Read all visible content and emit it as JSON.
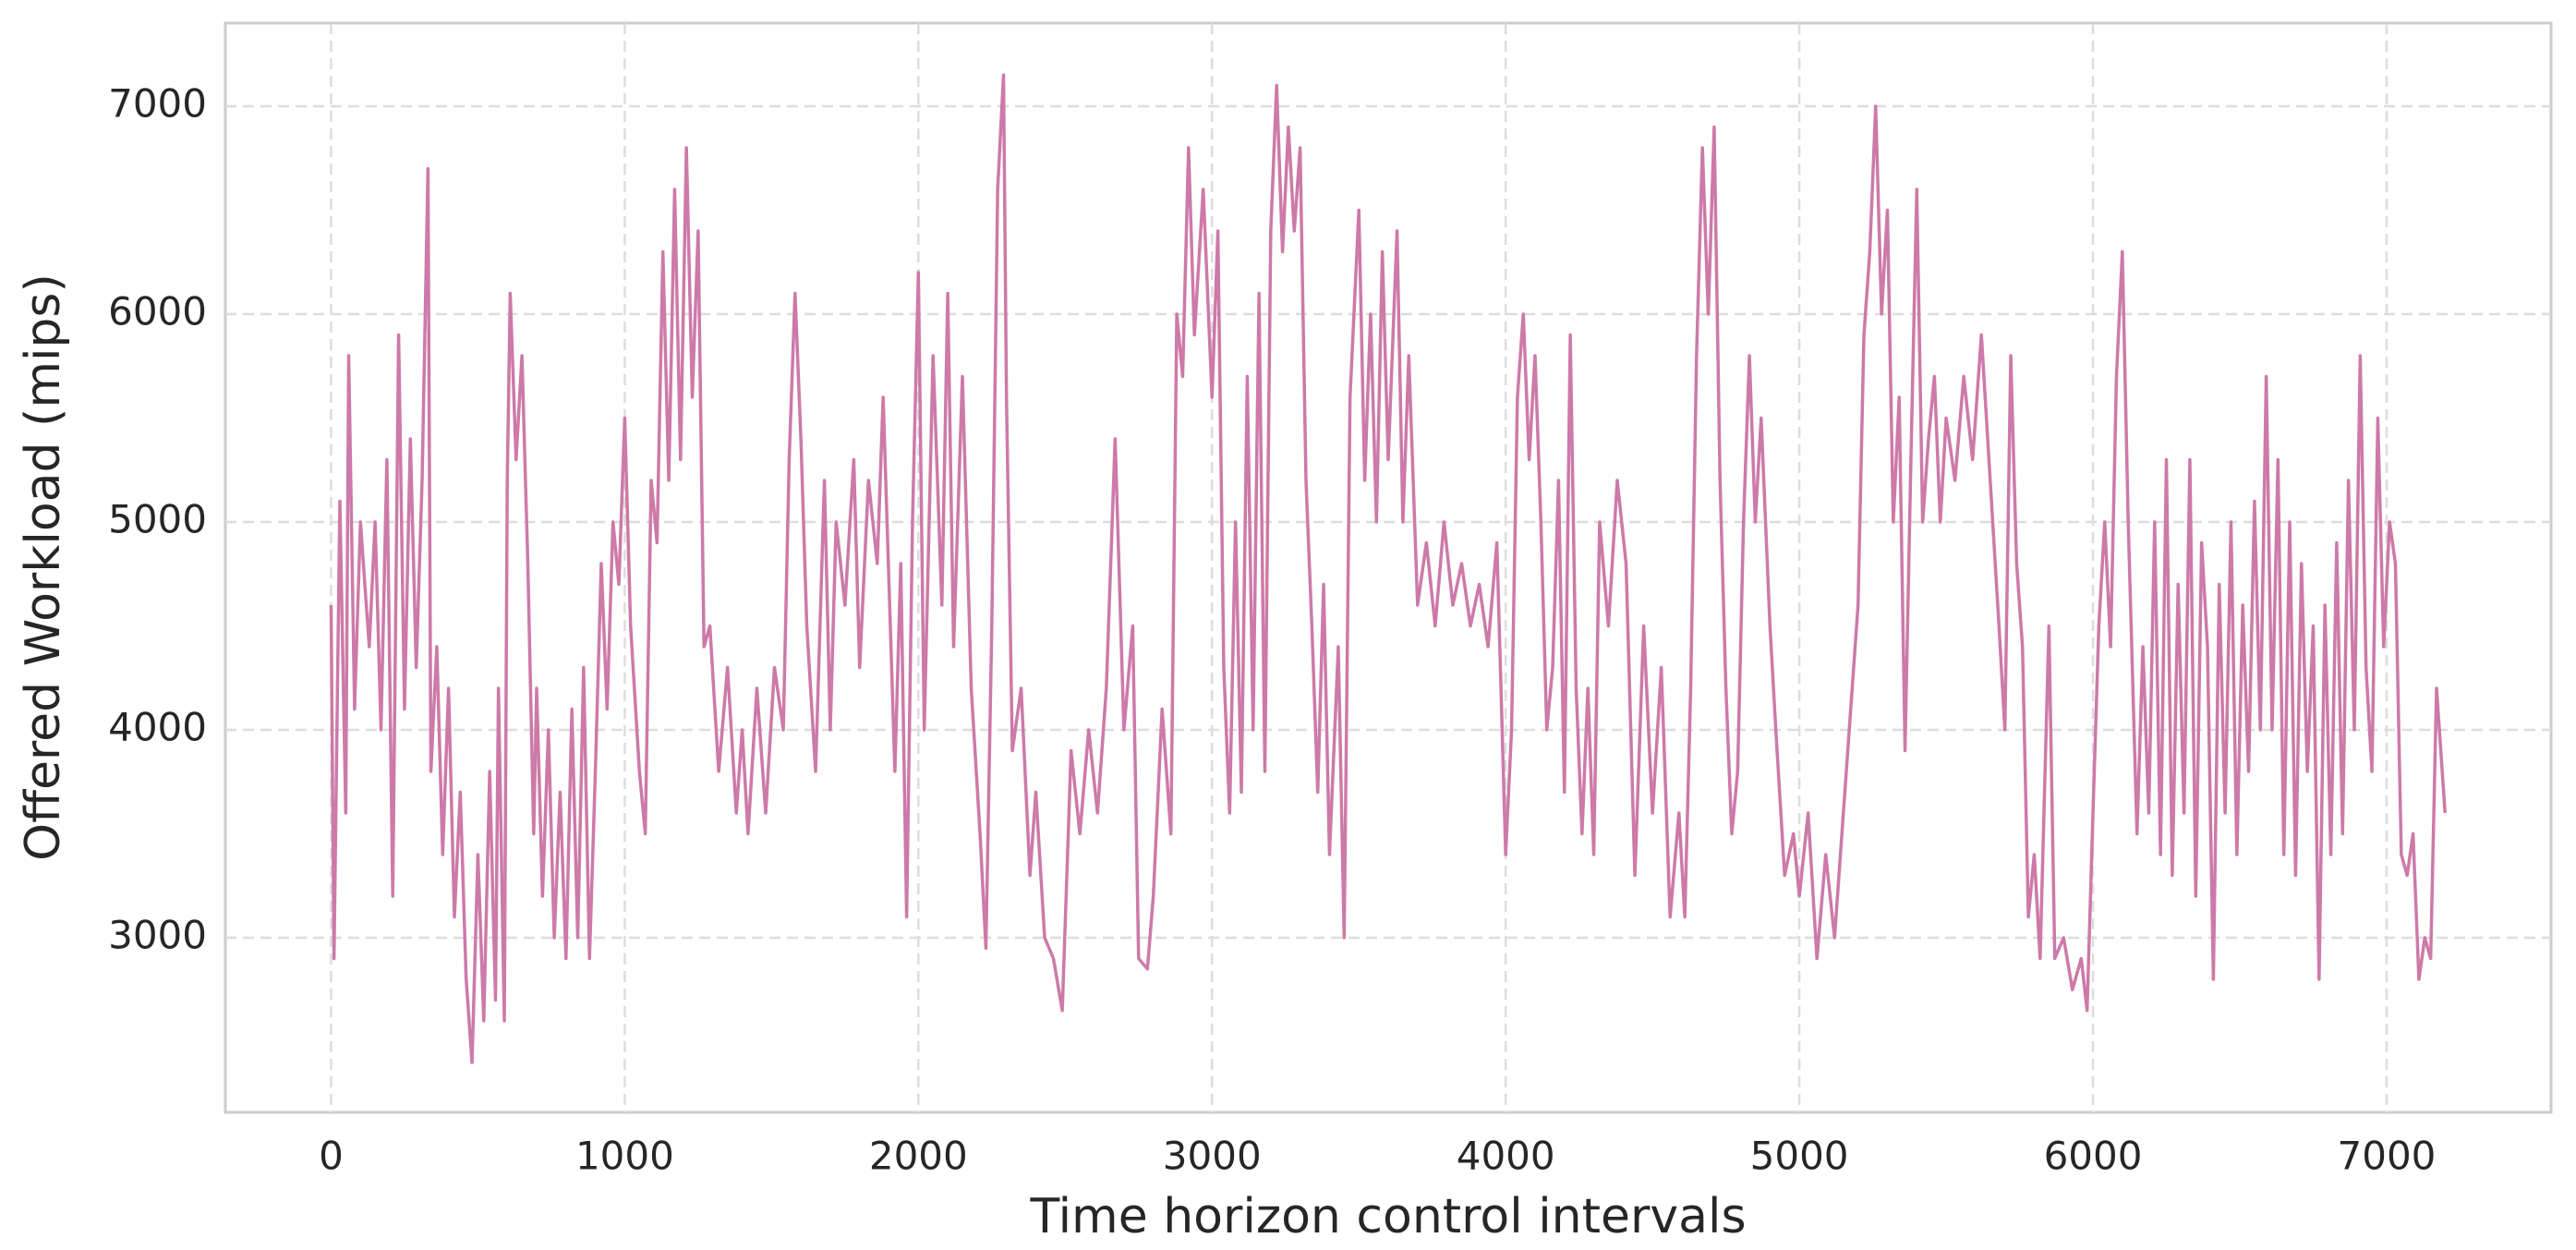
{
  "chart_data": {
    "type": "line",
    "xlabel": "Time horizon control intervals",
    "ylabel": "Offered Workload (mips)",
    "xlim": [
      -360,
      7560
    ],
    "ylim": [
      2160,
      7400
    ],
    "xticks": [
      0,
      1000,
      2000,
      3000,
      4000,
      5000,
      6000,
      7000
    ],
    "yticks": [
      3000,
      4000,
      5000,
      6000,
      7000
    ],
    "grid": true,
    "x": [
      0,
      10,
      30,
      50,
      60,
      80,
      100,
      130,
      150,
      170,
      190,
      210,
      230,
      250,
      270,
      290,
      310,
      330,
      340,
      360,
      380,
      400,
      420,
      440,
      460,
      480,
      500,
      520,
      540,
      560,
      570,
      590,
      600,
      610,
      630,
      650,
      670,
      690,
      700,
      720,
      740,
      760,
      780,
      800,
      820,
      840,
      860,
      880,
      900,
      920,
      940,
      960,
      980,
      1000,
      1020,
      1050,
      1070,
      1090,
      1110,
      1130,
      1150,
      1170,
      1190,
      1210,
      1230,
      1250,
      1270,
      1290,
      1320,
      1350,
      1380,
      1400,
      1420,
      1450,
      1480,
      1510,
      1540,
      1560,
      1580,
      1600,
      1620,
      1650,
      1680,
      1700,
      1720,
      1750,
      1780,
      1800,
      1830,
      1860,
      1880,
      1900,
      1920,
      1940,
      1960,
      1980,
      2000,
      2020,
      2050,
      2080,
      2100,
      2120,
      2150,
      2180,
      2210,
      2230,
      2250,
      2270,
      2290,
      2300,
      2320,
      2350,
      2380,
      2400,
      2430,
      2460,
      2490,
      2520,
      2550,
      2580,
      2610,
      2640,
      2670,
      2700,
      2730,
      2750,
      2780,
      2800,
      2830,
      2860,
      2880,
      2900,
      2920,
      2940,
      2970,
      3000,
      3020,
      3040,
      3060,
      3080,
      3100,
      3120,
      3140,
      3160,
      3180,
      3200,
      3220,
      3240,
      3260,
      3280,
      3300,
      3320,
      3340,
      3360,
      3380,
      3400,
      3430,
      3450,
      3470,
      3500,
      3520,
      3540,
      3560,
      3580,
      3600,
      3630,
      3650,
      3670,
      3700,
      3730,
      3760,
      3790,
      3820,
      3850,
      3880,
      3910,
      3940,
      3970,
      4000,
      4020,
      4040,
      4060,
      4080,
      4100,
      4120,
      4140,
      4160,
      4180,
      4200,
      4220,
      4240,
      4260,
      4280,
      4300,
      4320,
      4350,
      4380,
      4410,
      4440,
      4470,
      4500,
      4530,
      4560,
      4590,
      4610,
      4630,
      4650,
      4670,
      4690,
      4710,
      4730,
      4750,
      4770,
      4790,
      4810,
      4830,
      4850,
      4870,
      4900,
      4920,
      4950,
      4980,
      5000,
      5030,
      5060,
      5090,
      5120,
      5150,
      5180,
      5200,
      5220,
      5240,
      5260,
      5280,
      5300,
      5320,
      5340,
      5360,
      5380,
      5400,
      5420,
      5440,
      5460,
      5480,
      5500,
      5530,
      5560,
      5590,
      5620,
      5650,
      5680,
      5700,
      5720,
      5740,
      5760,
      5780,
      5800,
      5820,
      5850,
      5870,
      5900,
      5930,
      5960,
      5980,
      6000,
      6020,
      6040,
      6060,
      6080,
      6100,
      6120,
      6150,
      6170,
      6190,
      6210,
      6230,
      6250,
      6270,
      6290,
      6310,
      6330,
      6350,
      6370,
      6390,
      6410,
      6430,
      6450,
      6470,
      6490,
      6510,
      6530,
      6550,
      6570,
      6590,
      6610,
      6630,
      6650,
      6670,
      6690,
      6710,
      6730,
      6750,
      6770,
      6790,
      6810,
      6830,
      6850,
      6870,
      6890,
      6910,
      6930,
      6950,
      6970,
      6990,
      7010,
      7030,
      7050,
      7070,
      7090,
      7110,
      7130,
      7150,
      7170,
      7199
    ],
    "series": [
      {
        "name": "Offered Workload",
        "color": "#cd7aa8",
        "values": [
          4600,
          2900,
          5100,
          3600,
          5800,
          4100,
          5000,
          4400,
          5000,
          4000,
          5300,
          3200,
          5900,
          4100,
          5400,
          4300,
          5200,
          6700,
          3800,
          4400,
          3400,
          4200,
          3100,
          3700,
          2800,
          2400,
          3400,
          2600,
          3800,
          2700,
          4200,
          2600,
          5200,
          6100,
          5300,
          5800,
          4800,
          3500,
          4200,
          3200,
          4000,
          3000,
          3700,
          2900,
          4100,
          3000,
          4300,
          2900,
          3800,
          4800,
          4100,
          5000,
          4700,
          5500,
          4500,
          3800,
          3500,
          5200,
          4900,
          6300,
          5200,
          6600,
          5300,
          6800,
          5600,
          6400,
          4400,
          4500,
          3800,
          4300,
          3600,
          4000,
          3500,
          4200,
          3600,
          4300,
          4000,
          5300,
          6100,
          5400,
          4500,
          3800,
          5200,
          4000,
          5000,
          4600,
          5300,
          4300,
          5200,
          4800,
          5600,
          4700,
          3800,
          4800,
          3100,
          5000,
          6200,
          4000,
          5800,
          4600,
          6100,
          4400,
          5700,
          4200,
          3500,
          2950,
          4500,
          6600,
          7150,
          5600,
          3900,
          4200,
          3300,
          3700,
          3000,
          2900,
          2650,
          3900,
          3500,
          4000,
          3600,
          4200,
          5400,
          4000,
          4500,
          2900,
          2850,
          3200,
          4100,
          3500,
          6000,
          5700,
          6800,
          5900,
          6600,
          5600,
          6400,
          4300,
          3600,
          5000,
          3700,
          5700,
          4000,
          6100,
          3800,
          6400,
          7100,
          6300,
          6900,
          6400,
          6800,
          5200,
          4500,
          3700,
          4700,
          3400,
          4400,
          3000,
          5600,
          6500,
          5200,
          6000,
          5000,
          6300,
          5300,
          6400,
          5000,
          5800,
          4600,
          4900,
          4500,
          5000,
          4600,
          4800,
          4500,
          4700,
          4400,
          4900,
          3400,
          4000,
          5600,
          6000,
          5300,
          5800,
          5000,
          4000,
          4300,
          5200,
          3700,
          5900,
          4200,
          3500,
          4200,
          3400,
          5000,
          4500,
          5200,
          4800,
          3300,
          4500,
          3600,
          4300,
          3100,
          3600,
          3100,
          4200,
          5800,
          6800,
          6000,
          6900,
          5200,
          4200,
          3500,
          3800,
          5000,
          5800,
          5000,
          5500,
          4500,
          4000,
          3300,
          3500,
          3200,
          3600,
          2900,
          3400,
          3000,
          3600,
          4200,
          4600,
          5900,
          6300,
          7000,
          6000,
          6500,
          5000,
          5600,
          3900,
          5300,
          6600,
          5000,
          5400,
          5700,
          5000,
          5500,
          5200,
          5700,
          5300,
          5900,
          5200,
          4500,
          4000,
          5800,
          4800,
          4400,
          3100,
          3400,
          2900,
          4500,
          2900,
          3000,
          2750,
          2900,
          2650,
          3600,
          4500,
          5000,
          4400,
          5700,
          6300,
          5000,
          3500,
          4400,
          3600,
          5000,
          3400,
          5300,
          3300,
          4700,
          3600,
          5300,
          3200,
          4900,
          4400,
          2800,
          4700,
          3600,
          5000,
          3400,
          4600,
          3800,
          5100,
          4000,
          5700,
          4000,
          5300,
          3400,
          5000,
          3300,
          4800,
          3800,
          4500,
          2800,
          4600,
          3400,
          4900,
          3500,
          5200,
          4000,
          5800,
          4300,
          3800,
          5500,
          4400,
          5000,
          4800,
          3400,
          3300,
          3500,
          2800,
          3000,
          2900,
          4200,
          3600
        ]
      }
    ]
  }
}
